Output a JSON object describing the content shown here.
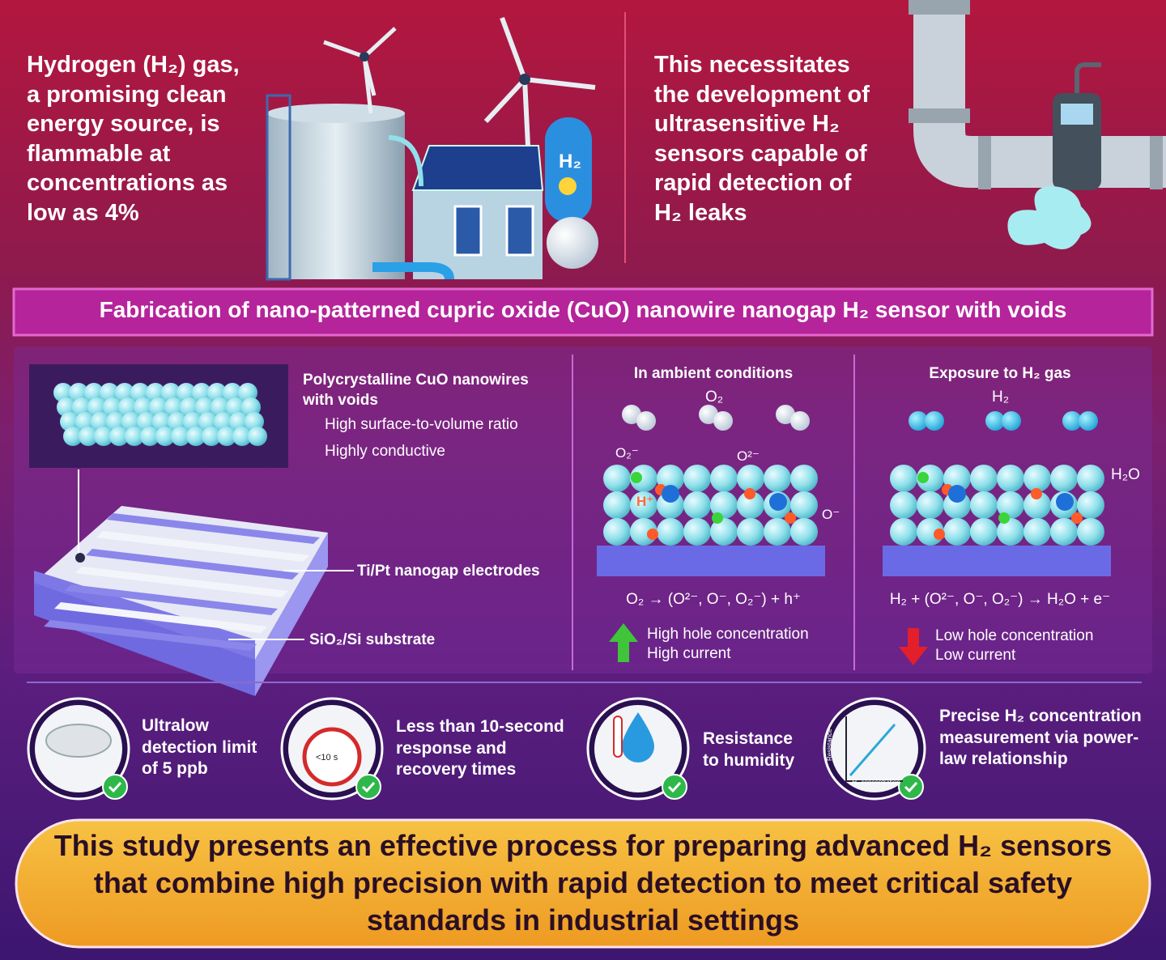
{
  "top": {
    "left_text": "Hydrogen (H₂) gas, a promising clean energy source, is flammable at concentrations as low as 4%",
    "tank_label": "H₂",
    "right_text": "This necessitates the development of ultrasensitive H₂ sensors capable of rapid detection of H₂ leaks"
  },
  "banner": "Fabrication of nano-patterned cupric oxide (CuO) nanowire nanogap H₂ sensor with voids",
  "fabrication": {
    "nanowire_title": "Polycrystalline CuO nanowires with voids",
    "features": [
      "High surface-to-volume ratio",
      "Highly conductive"
    ],
    "electrodes_label": "Ti/Pt nanogap electrodes",
    "substrate_label": "SiO₂/Si substrate"
  },
  "ambient": {
    "title": "In ambient conditions",
    "gas_label": "O₂",
    "species": [
      "O₂⁻",
      "O²⁻",
      "O⁻",
      "H⁺"
    ],
    "equation": "O₂ → (O²⁻, O⁻, O₂⁻) + h⁺",
    "result": [
      "High hole concentration",
      "High current"
    ]
  },
  "exposure": {
    "title": "Exposure to H₂ gas",
    "gas_label": "H₂",
    "product": "H₂O",
    "equation": "H₂ + (O²⁻, O⁻, O₂⁻) → H₂O + e⁻",
    "result": [
      "Low hole concentration",
      "Low current"
    ]
  },
  "features": [
    {
      "text": "Ultralow detection limit of 5 ppb"
    },
    {
      "text": "Less than 10-second response and recovery times",
      "icon_label": "<10 s"
    },
    {
      "text": "Resistance to humidity"
    },
    {
      "text": "Precise H₂ concentration measurement via power-law relationship",
      "axis_labels": [
        "Resistance",
        "H₂ concentration"
      ]
    }
  ],
  "conclusion": "This study presents an effective process for preparing advanced H₂ sensors that combine high precision with rapid detection to meet critical safety standards in industrial settings"
}
